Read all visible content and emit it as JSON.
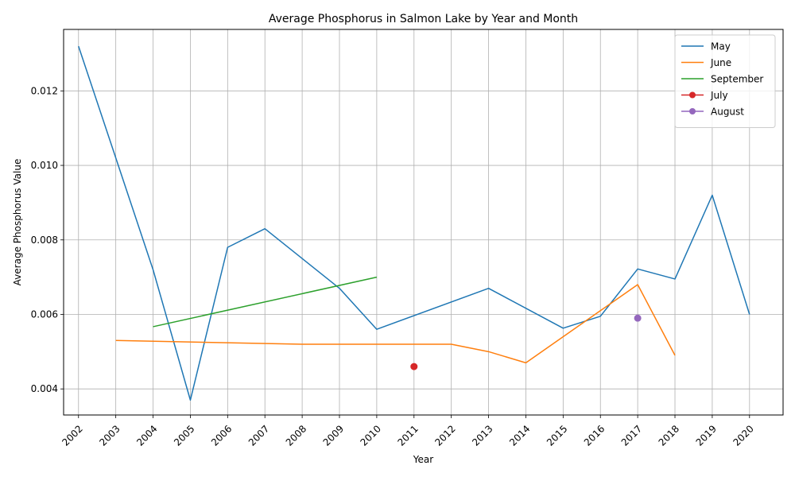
{
  "chart_data": {
    "type": "line",
    "title": "Average Phosphorus in Salmon Lake by Year and Month",
    "xlabel": "Year",
    "ylabel": "Average Phosphorus Value",
    "xlim": [
      2001.6,
      2020.9
    ],
    "ylim": [
      0.0033,
      0.01365
    ],
    "x_ticks": [
      2002,
      2003,
      2004,
      2005,
      2006,
      2007,
      2008,
      2009,
      2010,
      2011,
      2012,
      2013,
      2014,
      2015,
      2016,
      2017,
      2018,
      2019,
      2020
    ],
    "y_ticks": [
      0.004,
      0.006,
      0.008,
      0.01,
      0.012
    ],
    "y_tick_labels": [
      "0.004",
      "0.006",
      "0.008",
      "0.010",
      "0.012"
    ],
    "grid": true,
    "legend_position": "top-right",
    "series": [
      {
        "name": "May",
        "color": "#1f77b4",
        "marker": false,
        "x": [
          2002,
          2003,
          2004,
          2005,
          2006,
          2007,
          2008,
          2009,
          2010,
          2013,
          2015,
          2016,
          2017,
          2018,
          2019,
          2020
        ],
        "y": [
          0.0132,
          0.0102,
          0.0072,
          0.0037,
          0.0078,
          0.0083,
          0.0075,
          0.0067,
          0.0056,
          0.0067,
          0.00563,
          0.00595,
          0.00722,
          0.00695,
          0.0092,
          0.006
        ]
      },
      {
        "name": "June",
        "color": "#ff7f0e",
        "marker": false,
        "x": [
          2003,
          2008,
          2012,
          2013,
          2014,
          2016,
          2017,
          2018
        ],
        "y": [
          0.0053,
          0.0052,
          0.0052,
          0.005,
          0.0047,
          0.0061,
          0.0068,
          0.0049
        ]
      },
      {
        "name": "September",
        "color": "#2ca02c",
        "marker": false,
        "x": [
          2004,
          2010
        ],
        "y": [
          0.00567,
          0.007
        ]
      },
      {
        "name": "July",
        "color": "#d62728",
        "marker": true,
        "x": [
          2011
        ],
        "y": [
          0.0046
        ]
      },
      {
        "name": "August",
        "color": "#9467bd",
        "marker": true,
        "x": [
          2017
        ],
        "y": [
          0.0059
        ]
      }
    ]
  }
}
